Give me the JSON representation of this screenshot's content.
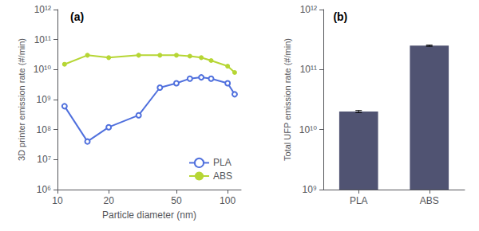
{
  "chart_data": [
    {
      "type": "line",
      "title": "(a)",
      "xlabel": "Particle diameter (nm)",
      "ylabel": "3D printer emission rate (#/min)",
      "x": [
        11,
        15,
        20,
        30,
        40,
        50,
        60,
        70,
        80,
        100,
        110
      ],
      "series": [
        {
          "name": "PLA",
          "marker": "open circle",
          "values": [
            600000000.0,
            40000000.0,
            120000000.0,
            300000000.0,
            2500000000.0,
            3500000000.0,
            5000000000.0,
            5500000000.0,
            5000000000.0,
            3500000000.0,
            1500000000.0
          ]
        },
        {
          "name": "ABS",
          "marker": "filled circle",
          "values": [
            15000000000.0,
            30000000000.0,
            25000000000.0,
            30000000000.0,
            30000000000.0,
            30000000000.0,
            28000000000.0,
            25000000000.0,
            20000000000.0,
            13000000000.0,
            8000000000.0
          ]
        }
      ],
      "xlim": [
        10,
        120
      ],
      "ylim": [
        1000000.0,
        1000000000000.0
      ],
      "xticks": [
        10,
        20,
        50,
        100
      ],
      "yticks": [
        {
          "value": 1000000.0,
          "label": "10⁶"
        },
        {
          "value": 10000000.0,
          "label": "10⁷"
        },
        {
          "value": 100000000.0,
          "label": "10⁸"
        },
        {
          "value": 1000000000.0,
          "label": "10⁹"
        },
        {
          "value": 10000000000.0,
          "label": "10¹⁰"
        },
        {
          "value": 100000000000.0,
          "label": "10¹¹"
        },
        {
          "value": 1000000000000.0,
          "label": "10¹²"
        }
      ],
      "log": true,
      "grid": false,
      "legend": "lower right"
    },
    {
      "type": "bar",
      "title": "(b)",
      "ylabel": "Total UFP emission rate (#/min)",
      "categories": [
        "PLA",
        "ABS"
      ],
      "values": [
        20000000000.0,
        250000000000.0
      ],
      "errors": [
        800000000.0,
        6000000000.0
      ],
      "ylim": [
        1000000000.0,
        1000000000000.0
      ],
      "yticks": [
        {
          "value": 1000000000.0,
          "label": "10⁹"
        },
        {
          "value": 10000000000.0,
          "label": "10¹⁰"
        },
        {
          "value": 100000000000.0,
          "label": "10¹¹"
        },
        {
          "value": 1000000000000.0,
          "label": "10¹²"
        }
      ],
      "log": "y",
      "grid": false
    }
  ]
}
